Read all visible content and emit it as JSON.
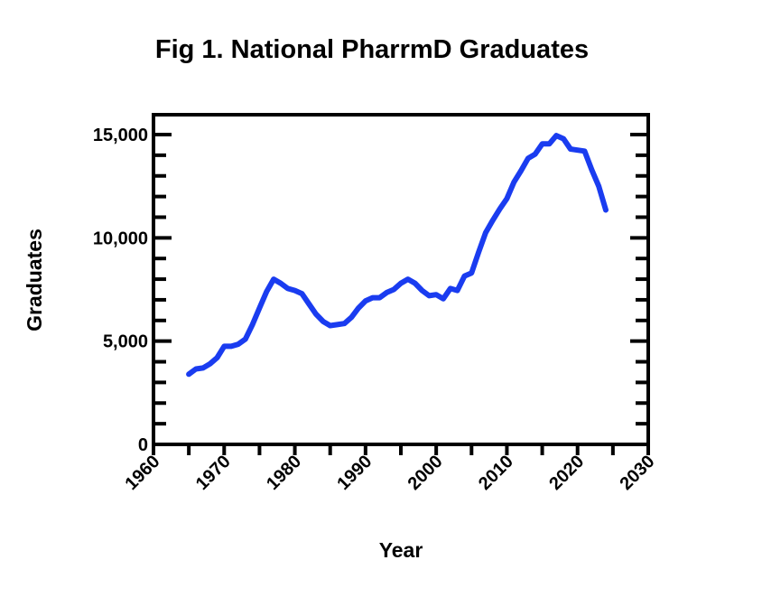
{
  "chart_data": {
    "type": "line",
    "title": "Fig 1. National PharrmD Graduates",
    "xlabel": "Year",
    "ylabel": "Graduates",
    "xlim": [
      1960,
      2030
    ],
    "ylim": [
      0,
      15000
    ],
    "xticks": [
      "1960",
      "1970",
      "1980",
      "1990",
      "2000",
      "2010",
      "2020",
      "2030"
    ],
    "yticks": [
      "0",
      "5,000",
      "10,000",
      "15,000"
    ],
    "grid": false,
    "line_color": "#1a3cf0",
    "series": [
      {
        "x": [
          1965,
          1966,
          1967,
          1968,
          1969,
          1970,
          1971,
          1972,
          1973,
          1974,
          1975,
          1976,
          1977,
          1978,
          1979,
          1980,
          1981,
          1982,
          1983,
          1984,
          1985,
          1986,
          1987,
          1988,
          1989,
          1990,
          1991,
          1992,
          1993,
          1994,
          1995,
          1996,
          1997,
          1998,
          1999,
          2000,
          2001,
          2002,
          2003,
          2004,
          2005,
          2006,
          2007,
          2008,
          2009,
          2010,
          2011,
          2012,
          2013,
          2014,
          2015,
          2016,
          2017,
          2018,
          2019,
          2020,
          2021,
          2022,
          2023,
          2024
        ],
        "values": [
          3400,
          3650,
          3700,
          3900,
          4200,
          4750,
          4750,
          4850,
          5100,
          5800,
          6600,
          7400,
          8000,
          7800,
          7550,
          7450,
          7300,
          6800,
          6300,
          5950,
          5750,
          5800,
          5850,
          6150,
          6600,
          6950,
          7100,
          7100,
          7350,
          7500,
          7800,
          8000,
          7800,
          7450,
          7200,
          7250,
          7050,
          7550,
          7450,
          8150,
          8300,
          9300,
          10250,
          10850,
          11400,
          11900,
          12700,
          13250,
          13850,
          14050,
          14550,
          14550,
          14950,
          14800,
          14300,
          14250,
          14200,
          13300,
          12500,
          11350
        ]
      }
    ]
  }
}
